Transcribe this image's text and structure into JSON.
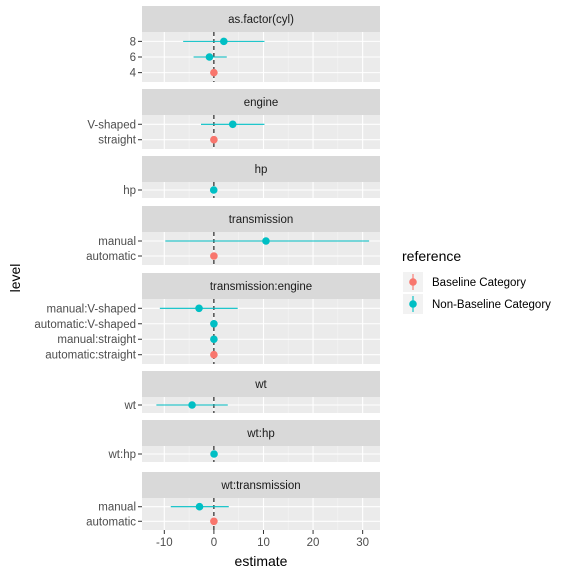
{
  "chart_data": {
    "type": "scatter",
    "xlabel": "estimate",
    "ylabel": "level",
    "xlim": [
      -14.5,
      33.5
    ],
    "x_ticks": [
      -10,
      0,
      10,
      20,
      30
    ],
    "x_tick_labels": [
      "-10",
      "0",
      "10",
      "20",
      "30"
    ],
    "reference_line_x": 0,
    "grid": true,
    "legend": {
      "title": "reference",
      "placement": "right",
      "entries": [
        {
          "label": "Baseline Category",
          "color": "#F8766D"
        },
        {
          "label": "Non-Baseline Category",
          "color": "#00BFC4"
        }
      ]
    },
    "panels": [
      {
        "strip": "as.factor(cyl)",
        "levels": [
          {
            "level": "8",
            "estimate": 2.0,
            "lower": -6.2,
            "upper": 10.2,
            "reference": "Non-Baseline Category"
          },
          {
            "level": "6",
            "estimate": -0.9,
            "lower": -4.1,
            "upper": 2.6,
            "reference": "Non-Baseline Category"
          },
          {
            "level": "4",
            "estimate": 0,
            "lower": 0,
            "upper": 0,
            "reference": "Baseline Category"
          }
        ]
      },
      {
        "strip": "engine",
        "levels": [
          {
            "level": "V-shaped",
            "estimate": 3.8,
            "lower": -2.6,
            "upper": 10.2,
            "reference": "Non-Baseline Category"
          },
          {
            "level": "straight",
            "estimate": 0,
            "lower": 0,
            "upper": 0,
            "reference": "Baseline Category"
          }
        ]
      },
      {
        "strip": "hp",
        "levels": [
          {
            "level": "hp",
            "estimate": -0.03,
            "lower": -0.07,
            "upper": 0.01,
            "reference": "Non-Baseline Category"
          }
        ]
      },
      {
        "strip": "transmission",
        "levels": [
          {
            "level": "manual",
            "estimate": 10.5,
            "lower": -9.8,
            "upper": 31.3,
            "reference": "Non-Baseline Category"
          },
          {
            "level": "automatic",
            "estimate": 0,
            "lower": 0,
            "upper": 0,
            "reference": "Baseline Category"
          }
        ]
      },
      {
        "strip": "transmission:engine",
        "levels": [
          {
            "level": "manual:V-shaped",
            "estimate": -3.0,
            "lower": -10.9,
            "upper": 4.8,
            "reference": "Non-Baseline Category"
          },
          {
            "level": "automatic:V-shaped",
            "estimate": 0,
            "lower": 0,
            "upper": 0,
            "reference": "Non-Baseline Category"
          },
          {
            "level": "manual:straight",
            "estimate": 0,
            "lower": 0,
            "upper": 0,
            "reference": "Non-Baseline Category"
          },
          {
            "level": "automatic:straight",
            "estimate": 0,
            "lower": 0,
            "upper": 0,
            "reference": "Baseline Category"
          }
        ]
      },
      {
        "strip": "wt",
        "levels": [
          {
            "level": "wt",
            "estimate": -4.4,
            "lower": -11.6,
            "upper": 2.8,
            "reference": "Non-Baseline Category"
          }
        ]
      },
      {
        "strip": "wt:hp",
        "levels": [
          {
            "level": "wt:hp",
            "estimate": 0.03,
            "lower": -0.01,
            "upper": 0.07,
            "reference": "Non-Baseline Category"
          }
        ]
      },
      {
        "strip": "wt:transmission",
        "levels": [
          {
            "level": "manual",
            "estimate": -2.9,
            "lower": -8.7,
            "upper": 3.0,
            "reference": "Non-Baseline Category"
          },
          {
            "level": "automatic",
            "estimate": 0,
            "lower": 0,
            "upper": 0,
            "reference": "Baseline Category"
          }
        ]
      }
    ]
  }
}
